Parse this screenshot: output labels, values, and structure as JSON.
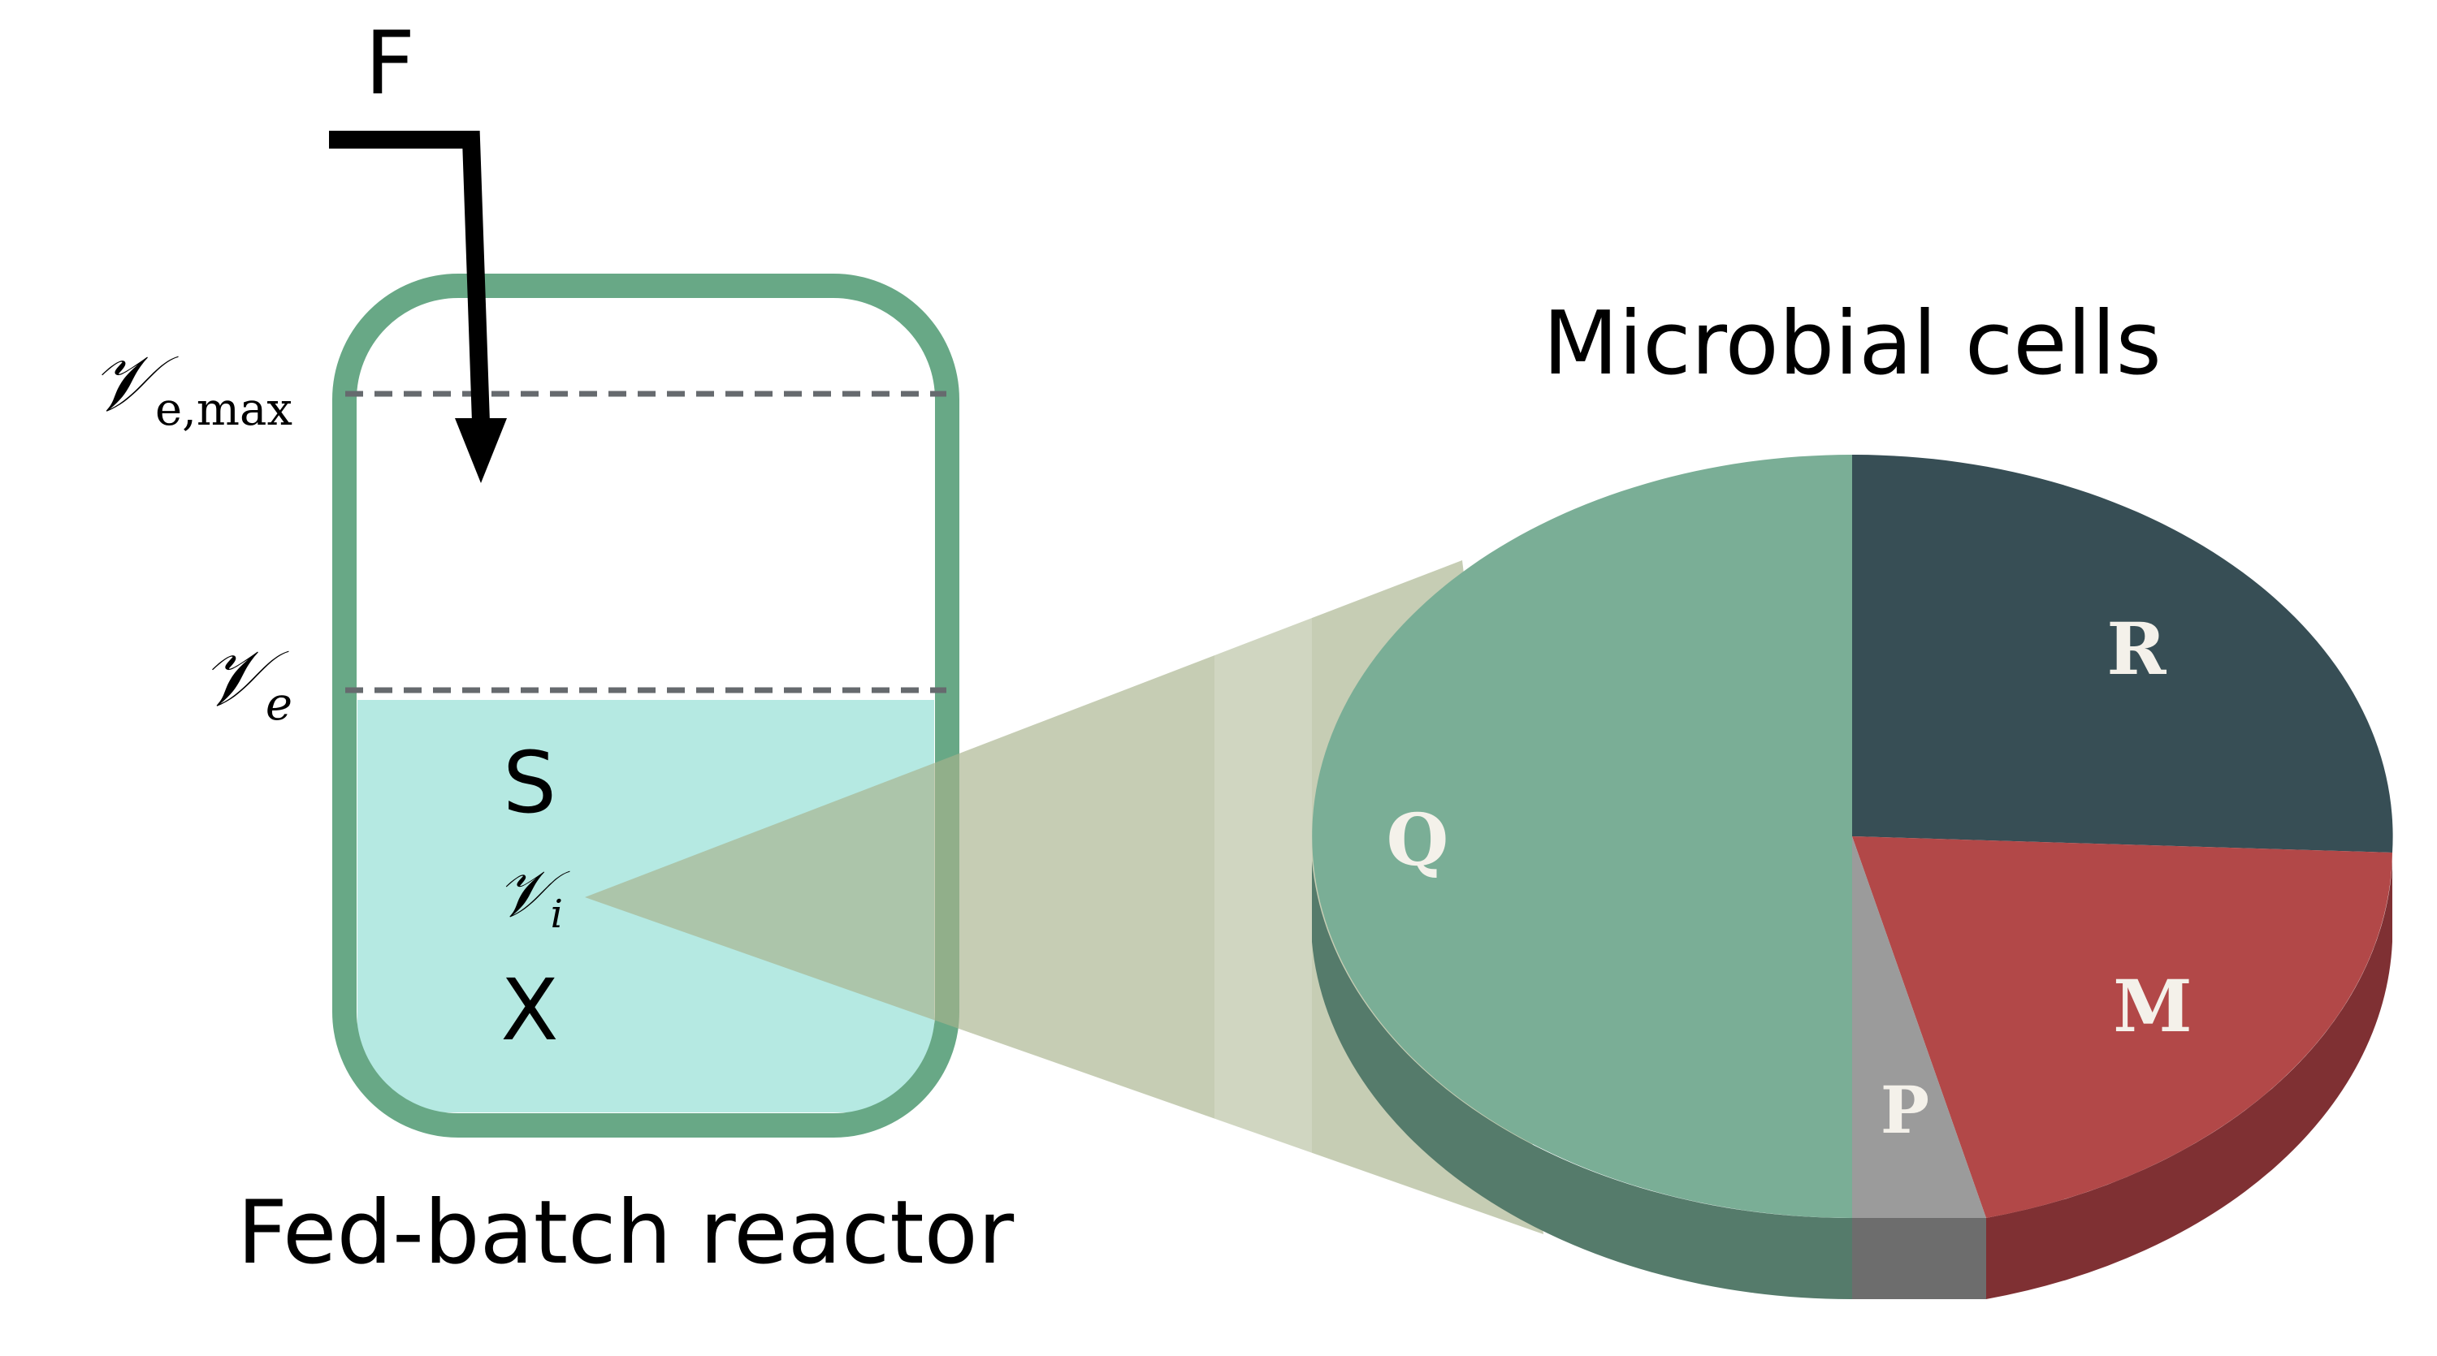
{
  "feed": {
    "label": "F"
  },
  "reactor": {
    "title": "Fed-batch reactor",
    "vmax_symbol": "𝒱",
    "vmax_subscript": "e,max",
    "ve_symbol": "𝒱",
    "ve_subscript": "e",
    "substrate_label": "S",
    "vi_symbol": "𝒱",
    "vi_subscript": "i",
    "biomass_label": "X"
  },
  "cells": {
    "title": "Microbial cells",
    "slices": {
      "q": "Q",
      "r": "R",
      "m": "M",
      "p": "P"
    }
  },
  "colors": {
    "reactor_wall": "#68a886",
    "reactor_liquid": "#b5e9e2",
    "zoom_cone": "#c6cdb1",
    "slice_q": "#7aae96",
    "slice_q_side": "#557b6b",
    "slice_r": "#374e55",
    "slice_m": "#b24848",
    "slice_m_side": "#7f3033",
    "slice_p": "#9b9b9b",
    "slice_p_side": "#6d6d6d"
  }
}
